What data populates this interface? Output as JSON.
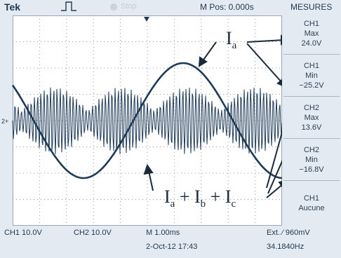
{
  "topbar": {
    "brand": "Tek",
    "status": "Stop",
    "mpos": "M Pos: 0.000s",
    "panel_title": "MESURES"
  },
  "measurements": [
    {
      "channel": "CH1",
      "kind": "Max",
      "value": "24.0V"
    },
    {
      "channel": "CH1",
      "kind": "Min",
      "value": "−25.2V"
    },
    {
      "channel": "CH2",
      "kind": "Max",
      "value": "13.6V"
    },
    {
      "channel": "CH2",
      "kind": "Min",
      "value": "−16.8V"
    },
    {
      "channel": "CH1",
      "kind": "Aucune",
      "value": ""
    }
  ],
  "bottombar": {
    "ch1_scale": "CH1  10.0V",
    "ch2_scale": "CH2  10.0V",
    "timebase": "M 1.00ms",
    "trigger": "Ext. ∕ 960mV",
    "date": "2-Oct-12 17:43",
    "frequency": "34.1840Hz"
  },
  "annotations": {
    "ia_main": "I",
    "ia_sub": "a",
    "sum_i1": "I",
    "sum_s1": "a",
    "sum_p1": "+ I",
    "sum_s2": "b",
    "sum_p2": "+ I",
    "sum_s3": "c"
  },
  "colors": {
    "screen_bg": "#e3eaf1",
    "grid_bg": "#ffffff",
    "trace": "#1f3a57",
    "text": "#243a52"
  },
  "icons": [
    "trigger-edge-icon",
    "stop-indicator-icon",
    "trigger-position-marker-icon",
    "ground-marker-icon"
  ]
}
